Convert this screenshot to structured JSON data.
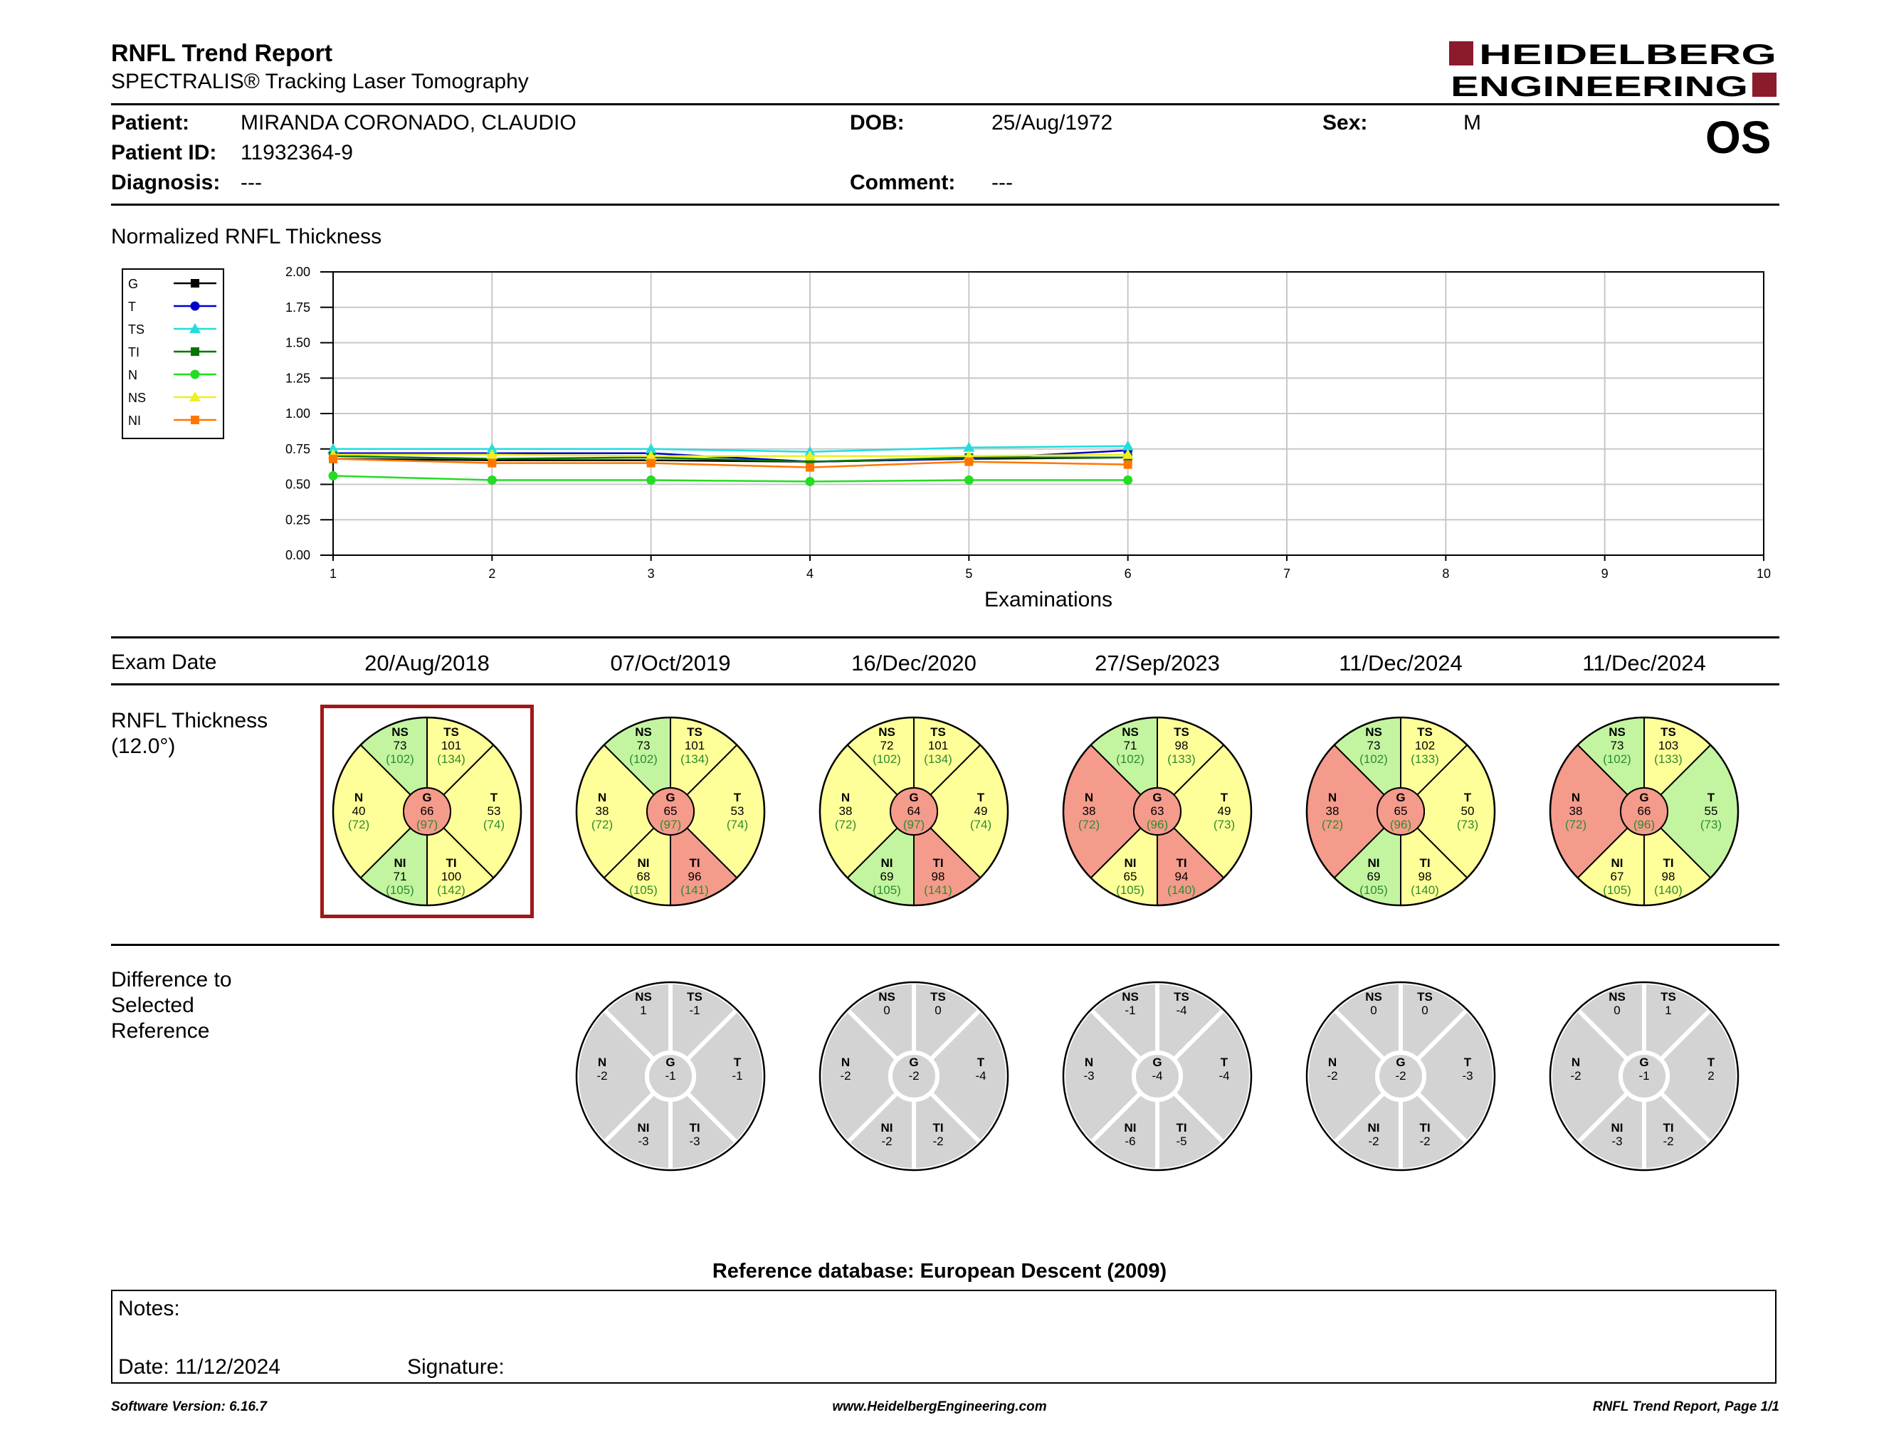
{
  "header": {
    "title": "RNFL Trend Report",
    "subtitle": "SPECTRALIS® Tracking Laser Tomography",
    "logo_line1": "HEIDELBERG",
    "logo_line2": "ENGINEERING",
    "logo_color": "#8b1a2b",
    "eye": "OS"
  },
  "patient": {
    "name_label": "Patient:",
    "name": "MIRANDA CORONADO, CLAUDIO",
    "id_label": "Patient ID:",
    "id": "11932364-9",
    "diagnosis_label": "Diagnosis:",
    "diagnosis": "---",
    "dob_label": "DOB:",
    "dob": "25/Aug/1972",
    "comment_label": "Comment:",
    "comment": "---",
    "sex_label": "Sex:",
    "sex": "M"
  },
  "chart_title": "Normalized RNFL Thickness",
  "chart_data": {
    "type": "line",
    "xlabel": "Examinations",
    "ylabel": "",
    "xlim": [
      1,
      10
    ],
    "ylim": [
      0,
      2
    ],
    "x_ticks": [
      "1",
      "2",
      "3",
      "4",
      "5",
      "6",
      "7",
      "8",
      "9",
      "10"
    ],
    "y_ticks": [
      "0.00",
      "0.25",
      "0.50",
      "0.75",
      "1.00",
      "1.25",
      "1.50",
      "1.75",
      "2.00"
    ],
    "grid": true,
    "legend": "left",
    "x": [
      1,
      2,
      3,
      4,
      5,
      6
    ],
    "series": [
      {
        "name": "G",
        "color": "#000000",
        "marker": "square",
        "values": [
          0.68,
          0.67,
          0.67,
          0.66,
          0.68,
          0.69
        ]
      },
      {
        "name": "T",
        "color": "#0000cc",
        "marker": "circle",
        "values": [
          0.72,
          0.72,
          0.72,
          0.66,
          0.68,
          0.74
        ]
      },
      {
        "name": "TS",
        "color": "#22dddd",
        "marker": "triangle",
        "values": [
          0.75,
          0.75,
          0.75,
          0.73,
          0.76,
          0.77
        ]
      },
      {
        "name": "TI",
        "color": "#007700",
        "marker": "square",
        "values": [
          0.7,
          0.68,
          0.69,
          0.66,
          0.69,
          0.69
        ]
      },
      {
        "name": "N",
        "color": "#22dd22",
        "marker": "circle",
        "values": [
          0.56,
          0.53,
          0.53,
          0.52,
          0.53,
          0.53
        ]
      },
      {
        "name": "NS",
        "color": "#eeee22",
        "marker": "triangle",
        "values": [
          0.71,
          0.71,
          0.7,
          0.7,
          0.7,
          0.71
        ]
      },
      {
        "name": "NI",
        "color": "#ff7700",
        "marker": "square",
        "values": [
          0.68,
          0.65,
          0.65,
          0.62,
          0.66,
          0.64
        ]
      }
    ]
  },
  "exam_date_label": "Exam Date",
  "rnfl_label_1": "RNFL Thickness",
  "rnfl_label_2": "(12.0°)",
  "diff_label_1": "Difference to",
  "diff_label_2": "Selected",
  "diff_label_3": "Reference",
  "colors": {
    "green": "#c3f5a0",
    "yellow": "#ffff99",
    "red": "#f59b8c",
    "gray": "#d3d3d3",
    "selected_border": "#a01818",
    "norm_text": "#2e8b2e"
  },
  "exams": [
    {
      "date": "20/Aug/2018",
      "selected": true,
      "sectors": {
        "NS": {
          "value": "73",
          "norm": "(102)",
          "color": "green"
        },
        "TS": {
          "value": "101",
          "norm": "(134)",
          "color": "yellow"
        },
        "T": {
          "value": "53",
          "norm": "(74)",
          "color": "yellow"
        },
        "TI": {
          "value": "100",
          "norm": "(142)",
          "color": "yellow"
        },
        "NI": {
          "value": "71",
          "norm": "(105)",
          "color": "green"
        },
        "N": {
          "value": "40",
          "norm": "(72)",
          "color": "yellow"
        },
        "G": {
          "value": "66",
          "norm": "(97)",
          "color": "red"
        }
      },
      "diff": null
    },
    {
      "date": "07/Oct/2019",
      "selected": false,
      "sectors": {
        "NS": {
          "value": "73",
          "norm": "(102)",
          "color": "green"
        },
        "TS": {
          "value": "101",
          "norm": "(134)",
          "color": "yellow"
        },
        "T": {
          "value": "53",
          "norm": "(74)",
          "color": "yellow"
        },
        "TI": {
          "value": "96",
          "norm": "(141)",
          "color": "red"
        },
        "NI": {
          "value": "68",
          "norm": "(105)",
          "color": "yellow"
        },
        "N": {
          "value": "38",
          "norm": "(72)",
          "color": "yellow"
        },
        "G": {
          "value": "65",
          "norm": "(97)",
          "color": "red"
        }
      },
      "diff": {
        "NS": "1",
        "TS": "-1",
        "T": "-1",
        "TI": "-3",
        "NI": "-3",
        "N": "-2",
        "G": "-1"
      }
    },
    {
      "date": "16/Dec/2020",
      "selected": false,
      "sectors": {
        "NS": {
          "value": "72",
          "norm": "(102)",
          "color": "yellow"
        },
        "TS": {
          "value": "101",
          "norm": "(134)",
          "color": "yellow"
        },
        "T": {
          "value": "49",
          "norm": "(74)",
          "color": "yellow"
        },
        "TI": {
          "value": "98",
          "norm": "(141)",
          "color": "red"
        },
        "NI": {
          "value": "69",
          "norm": "(105)",
          "color": "green"
        },
        "N": {
          "value": "38",
          "norm": "(72)",
          "color": "yellow"
        },
        "G": {
          "value": "64",
          "norm": "(97)",
          "color": "red"
        }
      },
      "diff": {
        "NS": "0",
        "TS": "0",
        "T": "-4",
        "TI": "-2",
        "NI": "-2",
        "N": "-2",
        "G": "-2"
      }
    },
    {
      "date": "27/Sep/2023",
      "selected": false,
      "sectors": {
        "NS": {
          "value": "71",
          "norm": "(102)",
          "color": "green"
        },
        "TS": {
          "value": "98",
          "norm": "(133)",
          "color": "yellow"
        },
        "T": {
          "value": "49",
          "norm": "(73)",
          "color": "yellow"
        },
        "TI": {
          "value": "94",
          "norm": "(140)",
          "color": "red"
        },
        "NI": {
          "value": "65",
          "norm": "(105)",
          "color": "yellow"
        },
        "N": {
          "value": "38",
          "norm": "(72)",
          "color": "red"
        },
        "G": {
          "value": "63",
          "norm": "(96)",
          "color": "red"
        }
      },
      "diff": {
        "NS": "-1",
        "TS": "-4",
        "T": "-4",
        "TI": "-5",
        "NI": "-6",
        "N": "-3",
        "G": "-4"
      }
    },
    {
      "date": "11/Dec/2024",
      "selected": false,
      "sectors": {
        "NS": {
          "value": "73",
          "norm": "(102)",
          "color": "green"
        },
        "TS": {
          "value": "102",
          "norm": "(133)",
          "color": "yellow"
        },
        "T": {
          "value": "50",
          "norm": "(73)",
          "color": "yellow"
        },
        "TI": {
          "value": "98",
          "norm": "(140)",
          "color": "yellow"
        },
        "NI": {
          "value": "69",
          "norm": "(105)",
          "color": "green"
        },
        "N": {
          "value": "38",
          "norm": "(72)",
          "color": "red"
        },
        "G": {
          "value": "65",
          "norm": "(96)",
          "color": "red"
        }
      },
      "diff": {
        "NS": "0",
        "TS": "0",
        "T": "-3",
        "TI": "-2",
        "NI": "-2",
        "N": "-2",
        "G": "-2"
      }
    },
    {
      "date": "11/Dec/2024",
      "selected": false,
      "sectors": {
        "NS": {
          "value": "73",
          "norm": "(102)",
          "color": "green"
        },
        "TS": {
          "value": "103",
          "norm": "(133)",
          "color": "yellow"
        },
        "T": {
          "value": "55",
          "norm": "(73)",
          "color": "green"
        },
        "TI": {
          "value": "98",
          "norm": "(140)",
          "color": "yellow"
        },
        "NI": {
          "value": "67",
          "norm": "(105)",
          "color": "yellow"
        },
        "N": {
          "value": "38",
          "norm": "(72)",
          "color": "red"
        },
        "G": {
          "value": "66",
          "norm": "(96)",
          "color": "red"
        }
      },
      "diff": {
        "NS": "0",
        "TS": "1",
        "T": "2",
        "TI": "-2",
        "NI": "-3",
        "N": "-2",
        "G": "-1"
      }
    }
  ],
  "reference_db": "Reference database: European Descent (2009)",
  "notes": {
    "label": "Notes:",
    "date_label": "Date: 11/12/2024",
    "signature_label": "Signature:"
  },
  "footer": {
    "software": "Software Version: 6.16.7",
    "website": "www.HeidelbergEngineering.com",
    "page": "RNFL Trend Report, Page 1/1"
  }
}
